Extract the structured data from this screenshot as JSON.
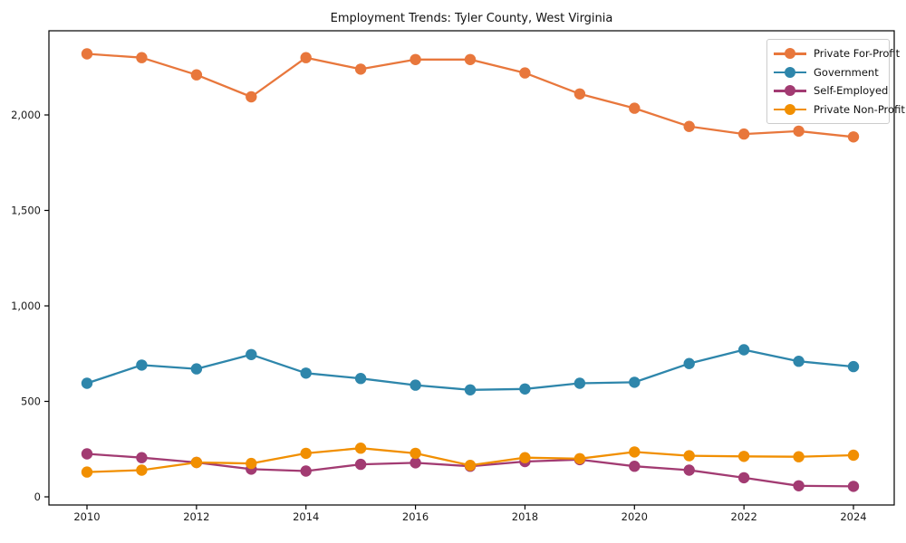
{
  "chart_data": {
    "type": "line",
    "title": "Employment Trends: Tyler County, West Virginia",
    "x": [
      2010,
      2011,
      2012,
      2013,
      2014,
      2015,
      2016,
      2017,
      2018,
      2019,
      2020,
      2021,
      2022,
      2023,
      2024
    ],
    "series": [
      {
        "name": "Private For-Profit",
        "color": "#E8773C",
        "values": [
          2320,
          2300,
          2210,
          2095,
          2300,
          2240,
          2290,
          2290,
          2220,
          2110,
          2035,
          1940,
          1900,
          1915,
          1885
        ]
      },
      {
        "name": "Government",
        "color": "#2E86AB",
        "values": [
          595,
          690,
          670,
          745,
          648,
          620,
          585,
          560,
          565,
          595,
          600,
          698,
          770,
          710,
          682
        ]
      },
      {
        "name": "Self-Employed",
        "color": "#A23B72",
        "values": [
          225,
          205,
          180,
          145,
          135,
          170,
          178,
          160,
          185,
          195,
          160,
          140,
          100,
          58,
          55
        ]
      },
      {
        "name": "Private Non-Profit",
        "color": "#F18F01",
        "values": [
          130,
          140,
          180,
          175,
          228,
          255,
          228,
          165,
          205,
          200,
          235,
          215,
          212,
          210,
          218
        ]
      }
    ],
    "xticks": {
      "values": [
        2010,
        2012,
        2014,
        2016,
        2018,
        2020,
        2022,
        2024
      ],
      "labels": [
        "2010",
        "2012",
        "2014",
        "2016",
        "2018",
        "2020",
        "2022",
        "2024"
      ]
    },
    "yticks": {
      "values": [
        0,
        500,
        1000,
        1500,
        2000
      ],
      "labels": [
        "0",
        "500",
        "1,000",
        "1,500",
        "2,000"
      ]
    },
    "xlim": [
      2009.3,
      2024.75
    ],
    "ylim": [
      -43,
      2441
    ],
    "grid": false,
    "legend_position": "top-right",
    "background": "#ffffff",
    "axis_color": "#000000",
    "xlabel": "",
    "ylabel": ""
  }
}
